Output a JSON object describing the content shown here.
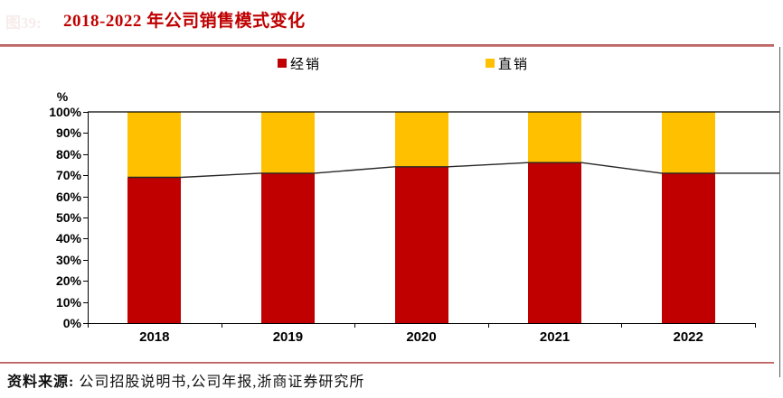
{
  "figure": {
    "faint_label": "图39:",
    "title": "2018-2022 年公司销售模式变化"
  },
  "legend": {
    "items": [
      {
        "label": "经销",
        "color": "#C00000"
      },
      {
        "label": "直销",
        "color": "#FFC000"
      }
    ]
  },
  "chart_data": {
    "type": "bar",
    "subtype": "stacked-100-percent-with-line",
    "title": "2018-2022 年公司销售模式变化",
    "categories": [
      "2018",
      "2019",
      "2020",
      "2021",
      "2022"
    ],
    "series": [
      {
        "name": "经销",
        "type": "bar",
        "color": "#C00000",
        "values": [
          69,
          71,
          74,
          76,
          71
        ]
      },
      {
        "name": "直销",
        "type": "bar",
        "color": "#FFC000",
        "values": [
          31,
          29,
          26,
          24,
          29
        ]
      },
      {
        "name": "经销占比连线",
        "type": "line",
        "color": "#262626",
        "values": [
          69,
          71,
          74,
          76,
          71
        ]
      }
    ],
    "total_line_value": 100,
    "unit_label": "%",
    "ylabel": "",
    "xlabel": "",
    "ylim": [
      0,
      100
    ],
    "y_tick_labels": [
      "100%",
      "90%",
      "80%",
      "70%",
      "60%",
      "50%",
      "40%",
      "30%",
      "20%",
      "10%",
      "0%"
    ],
    "grid": "off",
    "legend_position": "top"
  },
  "source": {
    "label": "资料来源:",
    "text": "公司招股说明书,公司年报,浙商证券研究所"
  },
  "colors": {
    "title_red": "#bf0000",
    "rule_red": "#c0504d",
    "bar_red": "#C00000",
    "bar_yellow": "#FFC000",
    "line_black": "#262626",
    "axis_black": "#000000"
  }
}
